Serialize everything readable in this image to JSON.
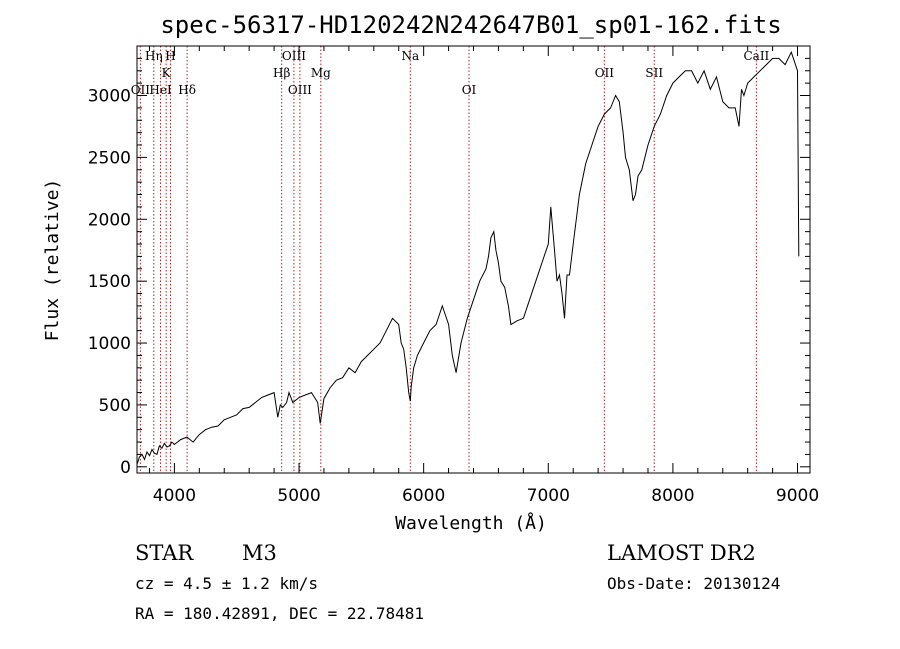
{
  "chart_data": {
    "type": "line",
    "title": "spec-56317-HD120242N242647B01_sp01-162.fits",
    "xlabel": "Wavelength (Å)",
    "ylabel": "Flux (relative)",
    "xlim": [
      3700,
      9100
    ],
    "ylim": [
      -50,
      3400
    ],
    "x_ticks": [
      4000,
      5000,
      6000,
      7000,
      8000,
      9000
    ],
    "y_ticks": [
      0,
      500,
      1000,
      1500,
      2000,
      2500,
      3000
    ],
    "grid": false,
    "series": [
      {
        "x": [
          3700,
          3720,
          3740,
          3760,
          3780,
          3800,
          3820,
          3840,
          3860,
          3880,
          3900,
          3920,
          3940,
          3960,
          3980,
          4000,
          4050,
          4100,
          4150,
          4200,
          4250,
          4300,
          4350,
          4400,
          4450,
          4500,
          4550,
          4600,
          4650,
          4700,
          4750,
          4800,
          4830,
          4850,
          4870,
          4900,
          4920,
          4950,
          5000,
          5050,
          5100,
          5150,
          5170,
          5200,
          5250,
          5300,
          5350,
          5400,
          5450,
          5500,
          5550,
          5600,
          5650,
          5700,
          5750,
          5800,
          5820,
          5840,
          5860,
          5880,
          5893,
          5900,
          5920,
          5950,
          6000,
          6050,
          6100,
          6150,
          6200,
          6230,
          6260,
          6300,
          6350,
          6400,
          6450,
          6500,
          6520,
          6540,
          6563,
          6580,
          6600,
          6620,
          6650,
          6680,
          6700,
          6750,
          6800,
          6850,
          6900,
          6950,
          7000,
          7020,
          7050,
          7070,
          7090,
          7110,
          7130,
          7150,
          7170,
          7200,
          7250,
          7300,
          7350,
          7400,
          7450,
          7500,
          7540,
          7570,
          7600,
          7620,
          7650,
          7680,
          7700,
          7720,
          7750,
          7800,
          7850,
          7900,
          7950,
          8000,
          8050,
          8100,
          8150,
          8200,
          8250,
          8300,
          8350,
          8400,
          8450,
          8500,
          8530,
          8550,
          8570,
          8600,
          8650,
          8700,
          8750,
          8800,
          8850,
          8900,
          8950,
          9000,
          9010
        ],
        "y": [
          20,
          80,
          100,
          60,
          120,
          90,
          140,
          110,
          100,
          170,
          150,
          190,
          160,
          170,
          200,
          180,
          220,
          240,
          200,
          260,
          300,
          320,
          330,
          380,
          400,
          420,
          470,
          480,
          520,
          560,
          580,
          600,
          400,
          500,
          480,
          520,
          600,
          520,
          560,
          580,
          600,
          520,
          350,
          550,
          640,
          700,
          720,
          800,
          760,
          850,
          900,
          950,
          1000,
          1100,
          1200,
          1150,
          1000,
          950,
          800,
          600,
          530,
          650,
          800,
          900,
          1000,
          1100,
          1150,
          1300,
          1150,
          900,
          760,
          1000,
          1200,
          1350,
          1500,
          1600,
          1700,
          1850,
          1900,
          1750,
          1650,
          1500,
          1450,
          1300,
          1150,
          1180,
          1200,
          1350,
          1500,
          1650,
          1800,
          2100,
          1750,
          1500,
          1550,
          1400,
          1200,
          1550,
          1550,
          1800,
          2200,
          2450,
          2600,
          2750,
          2850,
          2900,
          3000,
          2950,
          2700,
          2500,
          2400,
          2150,
          2200,
          2350,
          2400,
          2600,
          2750,
          2850,
          3000,
          3100,
          3150,
          3200,
          3200,
          3100,
          3200,
          3050,
          3150,
          2950,
          2900,
          2900,
          2750,
          3050,
          3000,
          3100,
          3150,
          3200,
          3250,
          3300,
          3300,
          3250,
          3350,
          3200,
          1700
        ]
      }
    ],
    "line_markers": [
      {
        "wavelength": 3727,
        "label": "OII",
        "row": 2
      },
      {
        "wavelength": 3835,
        "label": "Hη",
        "row": 0
      },
      {
        "wavelength": 3889,
        "label": "HeI",
        "row": 2
      },
      {
        "wavelength": 3934,
        "label": "K",
        "row": 1
      },
      {
        "wavelength": 3969,
        "label": "H",
        "row": 0
      },
      {
        "wavelength": 4102,
        "label": "Hδ",
        "row": 2
      },
      {
        "wavelength": 4861,
        "label": "Hβ",
        "row": 1
      },
      {
        "wavelength": 4959,
        "label": "OIII",
        "row": 0
      },
      {
        "wavelength": 5007,
        "label": "OIII",
        "row": 2
      },
      {
        "wavelength": 5175,
        "label": "Mg",
        "row": 1
      },
      {
        "wavelength": 5893,
        "label": "Na",
        "row": 0
      },
      {
        "wavelength": 6364,
        "label": "OI",
        "row": 2
      },
      {
        "wavelength": 7450,
        "label": "OII",
        "row": 1
      },
      {
        "wavelength": 7850,
        "label": "SII",
        "row": 1
      },
      {
        "wavelength": 8670,
        "label": "CaII",
        "row": 0
      }
    ]
  },
  "info": {
    "object_type": "STAR",
    "subclass": "M3",
    "survey": "LAMOST DR2",
    "cz": "cz = 4.5 ± 1.2 km/s",
    "obs_date": "Obs-Date: 20130124",
    "coords": "RA = 180.42891, DEC =  22.78481"
  },
  "colors": {
    "line_color": "#000000",
    "marker_color": "#b22222"
  }
}
